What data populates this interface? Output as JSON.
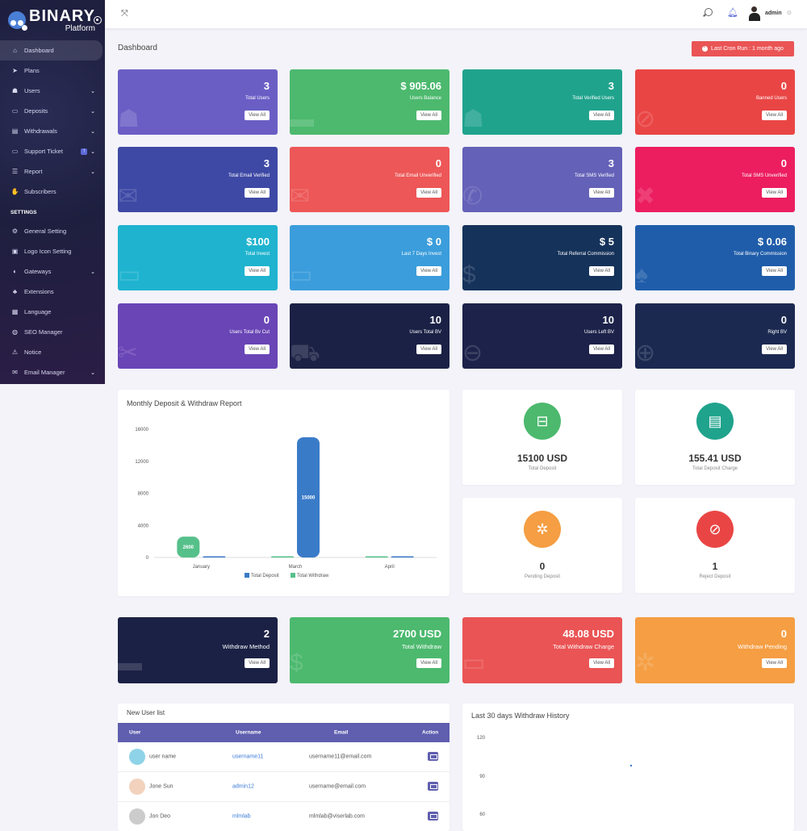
{
  "brand": {
    "title": "BINARY",
    "subtitle": "Platform"
  },
  "sidebar": {
    "items": [
      {
        "label": "Dashboard",
        "icon": "home-icon",
        "active": true,
        "caret": false
      },
      {
        "label": "Plans",
        "icon": "paper-plane-icon",
        "caret": false
      },
      {
        "label": "Users",
        "icon": "users-icon",
        "caret": true
      },
      {
        "label": "Deposits",
        "icon": "credit-card-icon",
        "caret": true
      },
      {
        "label": "Withdrawals",
        "icon": "bank-icon",
        "caret": true
      },
      {
        "label": "Support Ticket",
        "icon": "ticket-icon",
        "caret": true,
        "badge": "!"
      },
      {
        "label": "Report",
        "icon": "list-icon",
        "caret": true
      },
      {
        "label": "Subscribers",
        "icon": "thumbs-up-icon",
        "caret": false
      }
    ],
    "settings_heading": "SETTINGS",
    "settings_items": [
      {
        "label": "General Setting",
        "icon": "cog-icon",
        "caret": false
      },
      {
        "label": "Logo Icon Setting",
        "icon": "image-icon",
        "caret": false
      },
      {
        "label": "Gateways",
        "icon": "gateway-icon",
        "caret": true
      },
      {
        "label": "Extensions",
        "icon": "puzzle-icon",
        "caret": false
      },
      {
        "label": "Language",
        "icon": "language-icon",
        "caret": false
      },
      {
        "label": "SEO Manager",
        "icon": "globe-icon",
        "caret": false
      },
      {
        "label": "Notice",
        "icon": "warning-icon",
        "caret": false
      },
      {
        "label": "Email Manager",
        "icon": "envelope-icon",
        "caret": true
      }
    ]
  },
  "topbar": {
    "username": "admin"
  },
  "page": {
    "title": "Dashboard",
    "cron": "Last Cron Run : 1 month ago"
  },
  "stat_cards": [
    {
      "value": "3",
      "label": "Total Users",
      "button": "View All",
      "color": "#6a5ec5",
      "icon": "users-icon"
    },
    {
      "value": "$ 905.06",
      "label": "Users Balance",
      "button": "View All",
      "color": "#4cb96e",
      "icon": "wallet-icon"
    },
    {
      "value": "3",
      "label": "Total Verified Users",
      "button": "View All",
      "color": "#20a38d",
      "icon": "users-icon"
    },
    {
      "value": "0",
      "label": "Banned Users",
      "button": "View All",
      "color": "#ea4545",
      "icon": "ban-icon"
    },
    {
      "value": "3",
      "label": "Total Email Verified",
      "button": "View All",
      "color": "#3e49a5",
      "icon": "envelope-icon"
    },
    {
      "value": "0",
      "label": "Total Email Unverified",
      "button": "View All",
      "color": "#ed5757",
      "icon": "envelope-open-icon"
    },
    {
      "value": "3",
      "label": "Total SMS Verified",
      "button": "View All",
      "color": "#6461b8",
      "icon": "phone-icon"
    },
    {
      "value": "0",
      "label": "Total SMS Unverified",
      "button": "View All",
      "color": "#ec1e60",
      "icon": "times-icon"
    },
    {
      "value": "$100",
      "label": "Total Invest",
      "button": "View All",
      "color": "#1fb3cf",
      "icon": "money-icon"
    },
    {
      "value": "$ 0",
      "label": "Last 7 Days Invest",
      "button": "View All",
      "color": "#3b9ddb",
      "icon": "money-icon"
    },
    {
      "value": "$ 5",
      "label": "Total Referral Commission",
      "button": "View All",
      "color": "#15325a",
      "icon": "dollar-icon"
    },
    {
      "value": "$ 0.06",
      "label": "Total Binary Commission",
      "button": "View All",
      "color": "#1f5daa",
      "icon": "tree-icon"
    },
    {
      "value": "0",
      "label": "Users Total Bv Cut",
      "button": "View All",
      "color": "#6945b6",
      "icon": "scissors-icon"
    },
    {
      "value": "10",
      "label": "Users Total BV",
      "button": "View All",
      "color": "#1b2145",
      "icon": "cart-icon"
    },
    {
      "value": "10",
      "label": "Users Left BV",
      "button": "View All",
      "color": "#1c2249",
      "icon": "arrow-left-icon"
    },
    {
      "value": "0",
      "label": "Right BV",
      "button": "View All",
      "color": "#1b2951",
      "icon": "arrow-right-icon"
    }
  ],
  "deposit_chart": {
    "title": "Monthly Deposit & Withdraw Report"
  },
  "chart_data": {
    "type": "bar",
    "categories": [
      "January",
      "March",
      "April"
    ],
    "series": [
      {
        "name": "Total Deposit",
        "values": [
          0,
          15000,
          0
        ],
        "color": "#3a7bc8"
      },
      {
        "name": "Total Withdraw",
        "values": [
          2600,
          0,
          0
        ],
        "color": "#56c08a"
      }
    ],
    "data_labels": [
      "2600",
      "15000"
    ],
    "yticks": [
      "16000",
      "12000",
      "8000",
      "4000",
      "0"
    ],
    "ylim": [
      0,
      16000
    ],
    "ylabel": "",
    "legend": "bottom"
  },
  "deposit_summary": [
    {
      "value": "15100 USD",
      "label": "Total Deposit",
      "color": "#4cb96e",
      "icon": "money-bill-icon"
    },
    {
      "value": "155.41 USD",
      "label": "Total Deposit Charge",
      "color": "#20a38d",
      "icon": "id-card-icon"
    },
    {
      "value": "0",
      "label": "Pending Deposit",
      "color": "#f59e43",
      "icon": "spinner-icon"
    },
    {
      "value": "1",
      "label": "Reject Deposit",
      "color": "#ea4545",
      "icon": "ban-icon"
    }
  ],
  "withdraw_cards": [
    {
      "value": "2",
      "label": "Withdraw Method",
      "button": "View All",
      "color": "#1b2145",
      "icon": "wallet-icon"
    },
    {
      "value": "2700 USD",
      "label": "Total Withdraw",
      "button": "View All",
      "color": "#4cb96e",
      "icon": "hand-dollar-icon"
    },
    {
      "value": "48.08 USD",
      "label": "Total Withdraw Charge",
      "button": "View All",
      "color": "#ea5455",
      "icon": "money-icon"
    },
    {
      "value": "0",
      "label": "Withdraw Pending",
      "button": "View All",
      "color": "#f59e43",
      "icon": "spinner-icon"
    }
  ],
  "user_table": {
    "title": "New User list",
    "columns": [
      "User",
      "Username",
      "Email",
      "Action"
    ],
    "rows": [
      {
        "name": "user name",
        "username": "username11",
        "email": "username11@email.com"
      },
      {
        "name": "Jone Sun",
        "username": "admin12",
        "email": "username@email.com"
      },
      {
        "name": "Jon Deo",
        "username": "mlmlab",
        "email": "mlmlab@viserlab.com"
      }
    ]
  },
  "withdraw_history": {
    "title": "Last 30 days Withdraw History",
    "yticks": [
      "120",
      "90",
      "60"
    ]
  }
}
